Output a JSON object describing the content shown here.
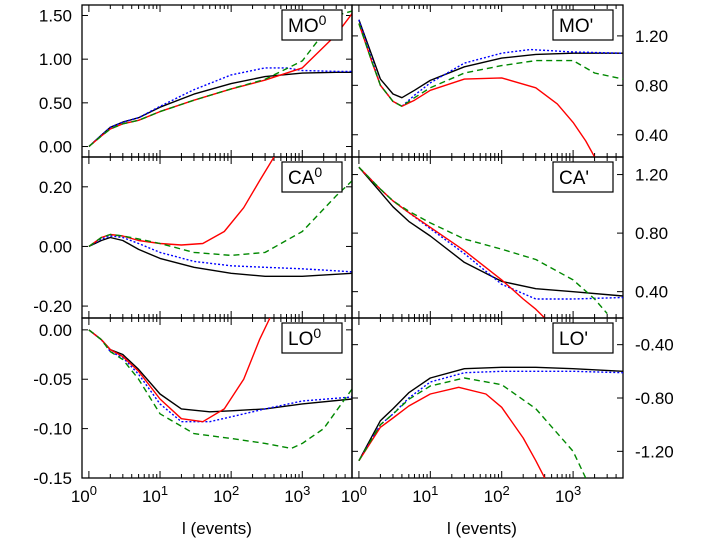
{
  "chart_data": [
    {
      "type": "line",
      "panel": "top-left",
      "label_main": "MO",
      "label_sup": "0",
      "x_scale": "log",
      "xlim": [
        0.8,
        5000
      ],
      "ylim": [
        -0.12,
        1.62
      ],
      "y_ticks": [
        0.0,
        0.5,
        1.0,
        1.5
      ],
      "y_tick_labels": [
        "0.00",
        "0.50",
        "1.00",
        "1.50"
      ],
      "y_axis_side": "left",
      "series": [
        {
          "color": "#000000",
          "style": "solid",
          "x": [
            1,
            1.5,
            2,
            3,
            5,
            10,
            30,
            100,
            300,
            1000,
            3000,
            5000
          ],
          "y": [
            0.0,
            0.13,
            0.22,
            0.28,
            0.33,
            0.45,
            0.6,
            0.72,
            0.8,
            0.84,
            0.85,
            0.85
          ]
        },
        {
          "color": "#0000ff",
          "style": "dotted",
          "x": [
            1,
            1.5,
            2,
            3,
            5,
            10,
            30,
            100,
            300,
            600,
            1000,
            3000,
            5000
          ],
          "y": [
            0.0,
            0.13,
            0.22,
            0.28,
            0.33,
            0.46,
            0.65,
            0.82,
            0.9,
            0.9,
            0.87,
            0.86,
            0.86
          ]
        },
        {
          "color": "#ff0000",
          "style": "solid",
          "x": [
            1,
            1.5,
            2,
            3,
            5,
            10,
            30,
            100,
            300,
            1000,
            3000,
            5000
          ],
          "y": [
            0.0,
            0.12,
            0.2,
            0.26,
            0.3,
            0.4,
            0.53,
            0.66,
            0.76,
            0.9,
            1.28,
            1.52
          ]
        },
        {
          "color": "#008800",
          "style": "dashed",
          "x": [
            1,
            1.5,
            2,
            3,
            5,
            10,
            30,
            100,
            300,
            1000,
            2000,
            3000,
            5000
          ],
          "y": [
            0.0,
            0.12,
            0.2,
            0.26,
            0.3,
            0.4,
            0.53,
            0.66,
            0.77,
            0.98,
            1.3,
            1.5,
            1.55
          ]
        }
      ]
    },
    {
      "type": "line",
      "panel": "top-right",
      "label_main": "MO'",
      "label_sup": "",
      "x_scale": "log",
      "xlim": [
        0.8,
        5000
      ],
      "ylim": [
        0.22,
        1.45
      ],
      "y_ticks": [
        0.4,
        0.8,
        1.2
      ],
      "y_tick_labels": [
        "0.40",
        "0.80",
        "1.20"
      ],
      "y_axis_side": "right",
      "series": [
        {
          "color": "#000000",
          "style": "solid",
          "x": [
            1,
            1.5,
            2,
            3,
            4,
            6,
            10,
            30,
            100,
            300,
            1000,
            5000
          ],
          "y": [
            1.33,
            1.05,
            0.85,
            0.73,
            0.7,
            0.76,
            0.84,
            0.95,
            1.02,
            1.05,
            1.06,
            1.06
          ]
        },
        {
          "color": "#0000ff",
          "style": "dotted",
          "x": [
            1,
            1.5,
            2,
            3,
            4,
            6,
            10,
            30,
            100,
            250,
            1000,
            5000
          ],
          "y": [
            1.33,
            1.02,
            0.8,
            0.67,
            0.63,
            0.72,
            0.82,
            0.98,
            1.06,
            1.09,
            1.07,
            1.06
          ]
        },
        {
          "color": "#ff0000",
          "style": "solid",
          "x": [
            1,
            1.5,
            2,
            3,
            4,
            6,
            10,
            30,
            100,
            300,
            600,
            1000,
            1500,
            2000
          ],
          "y": [
            1.3,
            1.0,
            0.8,
            0.67,
            0.63,
            0.68,
            0.76,
            0.85,
            0.86,
            0.78,
            0.65,
            0.5,
            0.35,
            0.22
          ]
        },
        {
          "color": "#008800",
          "style": "dashed",
          "x": [
            1,
            1.5,
            2,
            3,
            4,
            6,
            10,
            30,
            100,
            300,
            1000,
            2000,
            5000
          ],
          "y": [
            1.3,
            1.0,
            0.8,
            0.67,
            0.63,
            0.7,
            0.78,
            0.9,
            0.96,
            1.0,
            1.0,
            0.9,
            0.85
          ]
        }
      ]
    },
    {
      "type": "line",
      "panel": "middle-left",
      "label_main": "CA",
      "label_sup": "0",
      "x_scale": "log",
      "xlim": [
        0.8,
        5000
      ],
      "ylim": [
        -0.24,
        0.3
      ],
      "y_ticks": [
        -0.2,
        0.0,
        0.2
      ],
      "y_tick_labels": [
        "-0.20",
        "0.00",
        "0.20"
      ],
      "y_axis_side": "left",
      "series": [
        {
          "color": "#000000",
          "style": "solid",
          "x": [
            1,
            1.5,
            2,
            3,
            5,
            10,
            30,
            100,
            300,
            1000,
            5000
          ],
          "y": [
            0.0,
            0.02,
            0.03,
            0.02,
            -0.01,
            -0.04,
            -0.07,
            -0.09,
            -0.1,
            -0.1,
            -0.09
          ]
        },
        {
          "color": "#0000ff",
          "style": "dotted",
          "x": [
            1,
            1.5,
            2,
            3,
            5,
            10,
            30,
            100,
            300,
            1000,
            5000
          ],
          "y": [
            0.0,
            0.025,
            0.035,
            0.03,
            0.01,
            -0.02,
            -0.05,
            -0.065,
            -0.07,
            -0.075,
            -0.085
          ]
        },
        {
          "color": "#ff0000",
          "style": "solid",
          "x": [
            1,
            1.5,
            2,
            3,
            5,
            10,
            20,
            40,
            80,
            150,
            250,
            400
          ],
          "y": [
            0.0,
            0.03,
            0.04,
            0.035,
            0.02,
            0.01,
            0.005,
            0.01,
            0.05,
            0.13,
            0.22,
            0.3
          ]
        },
        {
          "color": "#008800",
          "style": "dashed",
          "x": [
            1,
            1.5,
            2,
            3,
            5,
            10,
            30,
            100,
            300,
            1000,
            3000,
            5000
          ],
          "y": [
            0.0,
            0.03,
            0.04,
            0.035,
            0.025,
            0.01,
            -0.02,
            -0.03,
            -0.02,
            0.05,
            0.17,
            0.22
          ]
        }
      ]
    },
    {
      "type": "line",
      "panel": "middle-right",
      "label_main": "CA'",
      "label_sup": "",
      "x_scale": "log",
      "xlim": [
        0.8,
        5000
      ],
      "ylim": [
        0.22,
        1.32
      ],
      "y_ticks": [
        0.4,
        0.8,
        1.2
      ],
      "y_tick_labels": [
        "0.40",
        "0.80",
        "1.20"
      ],
      "y_axis_side": "right",
      "series": [
        {
          "color": "#000000",
          "style": "solid",
          "x": [
            1,
            2,
            3,
            5,
            10,
            30,
            100,
            300,
            1000,
            5000
          ],
          "y": [
            1.25,
            1.08,
            0.98,
            0.88,
            0.78,
            0.6,
            0.47,
            0.42,
            0.4,
            0.37
          ]
        },
        {
          "color": "#0000ff",
          "style": "dotted",
          "x": [
            1,
            2,
            3,
            5,
            10,
            30,
            100,
            300,
            1000,
            5000
          ],
          "y": [
            1.25,
            1.1,
            1.02,
            0.94,
            0.83,
            0.66,
            0.45,
            0.35,
            0.35,
            0.36
          ]
        },
        {
          "color": "#ff0000",
          "style": "solid",
          "x": [
            1,
            2,
            3,
            5,
            10,
            30,
            100,
            200,
            300,
            400
          ],
          "y": [
            1.25,
            1.1,
            1.02,
            0.94,
            0.84,
            0.68,
            0.48,
            0.35,
            0.28,
            0.22
          ]
        },
        {
          "color": "#008800",
          "style": "dashed",
          "x": [
            1,
            2,
            3,
            5,
            10,
            30,
            100,
            300,
            1000,
            2000,
            3000
          ],
          "y": [
            1.25,
            1.1,
            1.02,
            0.95,
            0.87,
            0.76,
            0.69,
            0.62,
            0.48,
            0.35,
            0.25
          ]
        }
      ]
    },
    {
      "type": "line",
      "panel": "bottom-left",
      "label_main": "LO",
      "label_sup": "0",
      "x_scale": "log",
      "xlim": [
        0.8,
        5000
      ],
      "ylim": [
        -0.15,
        0.012
      ],
      "y_ticks": [
        -0.15,
        -0.1,
        -0.05,
        0.0
      ],
      "y_tick_labels": [
        "-0.15",
        "-0.10",
        "-0.05",
        "0.00"
      ],
      "y_axis_side": "left",
      "series": [
        {
          "color": "#000000",
          "style": "solid",
          "x": [
            1,
            1.5,
            2,
            3,
            5,
            10,
            20,
            50,
            100,
            300,
            1000,
            5000
          ],
          "y": [
            0.0,
            -0.01,
            -0.02,
            -0.025,
            -0.04,
            -0.065,
            -0.08,
            -0.083,
            -0.082,
            -0.08,
            -0.075,
            -0.07
          ]
        },
        {
          "color": "#0000ff",
          "style": "dotted",
          "x": [
            1,
            1.5,
            2,
            3,
            5,
            10,
            20,
            50,
            100,
            300,
            1000,
            5000
          ],
          "y": [
            0.0,
            -0.01,
            -0.022,
            -0.028,
            -0.045,
            -0.075,
            -0.093,
            -0.093,
            -0.088,
            -0.08,
            -0.072,
            -0.068
          ]
        },
        {
          "color": "#ff0000",
          "style": "solid",
          "x": [
            1,
            1.5,
            2,
            3,
            5,
            10,
            20,
            40,
            80,
            150,
            250,
            350
          ],
          "y": [
            0.0,
            -0.01,
            -0.02,
            -0.027,
            -0.042,
            -0.07,
            -0.09,
            -0.093,
            -0.08,
            -0.05,
            -0.01,
            0.012
          ]
        },
        {
          "color": "#008800",
          "style": "dashed",
          "x": [
            1,
            1.5,
            2,
            3,
            5,
            10,
            30,
            100,
            300,
            700,
            1000,
            2000,
            5000
          ],
          "y": [
            0.0,
            -0.01,
            -0.022,
            -0.03,
            -0.05,
            -0.085,
            -0.105,
            -0.11,
            -0.115,
            -0.12,
            -0.115,
            -0.1,
            -0.06
          ]
        }
      ]
    },
    {
      "type": "line",
      "panel": "bottom-right",
      "label_main": "LO'",
      "label_sup": "",
      "x_scale": "log",
      "xlim": [
        0.8,
        5000
      ],
      "ylim": [
        -1.4,
        -0.2
      ],
      "y_ticks": [
        -1.2,
        -0.8,
        -0.4
      ],
      "y_tick_labels": [
        "-1.20",
        "-0.80",
        "-0.40"
      ],
      "y_axis_side": "right",
      "series": [
        {
          "color": "#000000",
          "style": "solid",
          "x": [
            1,
            2,
            3,
            5,
            10,
            30,
            100,
            300,
            1000,
            5000
          ],
          "y": [
            -1.27,
            -0.97,
            -0.88,
            -0.76,
            -0.65,
            -0.58,
            -0.57,
            -0.57,
            -0.58,
            -0.6
          ]
        },
        {
          "color": "#0000ff",
          "style": "dotted",
          "x": [
            1,
            2,
            3,
            5,
            10,
            30,
            100,
            300,
            1000,
            5000
          ],
          "y": [
            -1.27,
            -1.0,
            -0.92,
            -0.8,
            -0.68,
            -0.61,
            -0.6,
            -0.6,
            -0.6,
            -0.61
          ]
        },
        {
          "color": "#ff0000",
          "style": "solid",
          "x": [
            1,
            2,
            3,
            5,
            10,
            25,
            60,
            100,
            200,
            300,
            400
          ],
          "y": [
            -1.27,
            -1.02,
            -0.95,
            -0.86,
            -0.77,
            -0.72,
            -0.77,
            -0.87,
            -1.1,
            -1.27,
            -1.4
          ]
        },
        {
          "color": "#008800",
          "style": "dashed",
          "x": [
            1,
            2,
            3,
            5,
            10,
            30,
            100,
            300,
            1000,
            1500
          ],
          "y": [
            -1.27,
            -1.0,
            -0.92,
            -0.81,
            -0.71,
            -0.65,
            -0.7,
            -0.88,
            -1.2,
            -1.4
          ]
        }
      ]
    }
  ],
  "x_axis": {
    "title": "l (events)",
    "tick_base": "10",
    "tick_exponents": [
      "0",
      "1",
      "2",
      "3"
    ]
  }
}
